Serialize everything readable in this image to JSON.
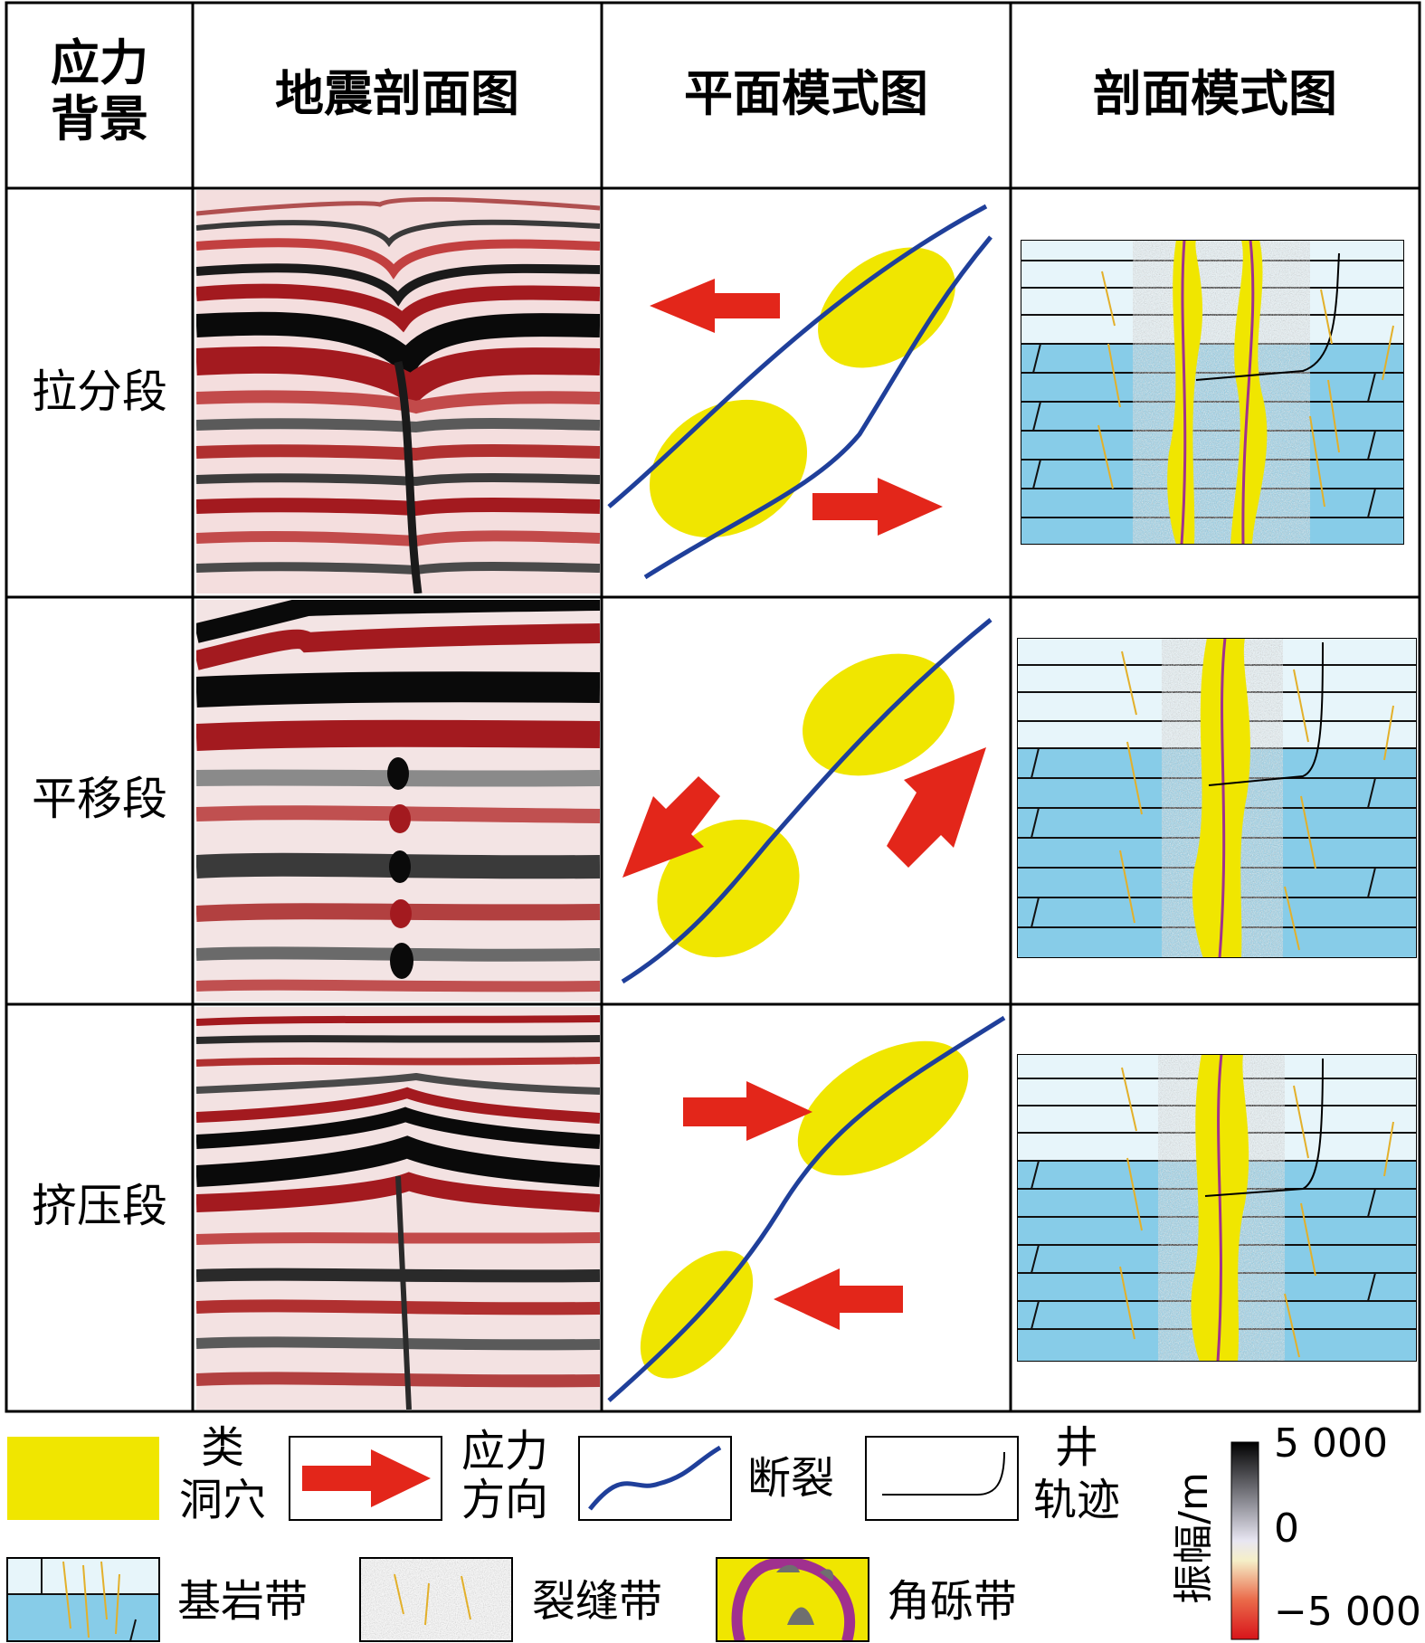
{
  "headers": {
    "stress_line1": "应力",
    "stress_line2": "背景",
    "seismic": "地震剖面图",
    "plan": "平面模式图",
    "section": "剖面模式图"
  },
  "rows": [
    "拉分段",
    "平移段",
    "挤压段"
  ],
  "legend": {
    "cavity_line1": "类",
    "cavity_line2": "洞穴",
    "stress_dir_line1": "应力",
    "stress_dir_line2": "方向",
    "fault": "断裂",
    "well_line1": "井",
    "well_line2": "轨迹",
    "bedrock": "基岩带",
    "fracture": "裂缝带",
    "breccia": "角砾带"
  },
  "colorbar": {
    "label": "振幅/m",
    "max": "5 000",
    "mid": "0",
    "min": "−5 000"
  },
  "colors": {
    "cavity": "#f0e600",
    "arrow": "#e3261a",
    "fault": "#1f3f9a",
    "bedrock_water": "#87cce8",
    "bedrock_light": "#e7f5fa",
    "seismic_red": "#a31a1f",
    "seismic_black": "#0a0a0a",
    "breccia_purple": "#a0308e"
  }
}
